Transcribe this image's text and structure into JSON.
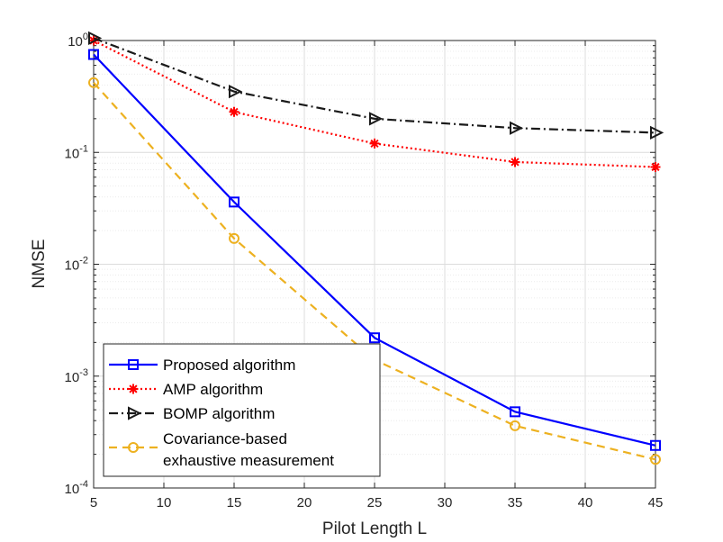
{
  "chart_data": {
    "type": "line",
    "title": "",
    "xlabel": "Pilot Length L",
    "ylabel": "NMSE",
    "yscale": "log",
    "xlim": [
      5,
      45
    ],
    "ylim_exp": [
      -4,
      0
    ],
    "x_ticks": [
      5,
      10,
      15,
      20,
      25,
      30,
      35,
      40,
      45
    ],
    "y_ticks": [
      {
        "base": "10",
        "exp": "0"
      },
      {
        "base": "10",
        "exp": "-1"
      },
      {
        "base": "10",
        "exp": "-2"
      },
      {
        "base": "10",
        "exp": "-3"
      },
      {
        "base": "10",
        "exp": "-4"
      }
    ],
    "grid": true,
    "legend_position": "bottom-left",
    "x": [
      5,
      15,
      25,
      35,
      45
    ],
    "series": [
      {
        "name": "Proposed algorithm",
        "legend_lines": [
          "Proposed algorithm"
        ],
        "color": "#0000ff",
        "dash": "",
        "marker": "square",
        "values": [
          0.75,
          0.036,
          0.0022,
          0.00048,
          0.00024
        ]
      },
      {
        "name": "AMP algorithm",
        "legend_lines": [
          "AMP algorithm"
        ],
        "color": "#ff0000",
        "dash": "2,3",
        "marker": "star",
        "values": [
          1.0,
          0.23,
          0.12,
          0.082,
          0.074
        ]
      },
      {
        "name": "BOMP algorithm",
        "legend_lines": [
          "BOMP algorithm"
        ],
        "color": "#1a1a1a",
        "dash": "10,4,2,4",
        "marker": "triangle-right",
        "values": [
          1.05,
          0.35,
          0.2,
          0.165,
          0.15
        ]
      },
      {
        "name": "Covariance-based exhaustive measurement",
        "legend_lines": [
          "Covariance-based",
          "exhaustive measurement"
        ],
        "color": "#edb120",
        "dash": "9,6",
        "marker": "circle",
        "values": [
          0.42,
          0.017,
          0.0014,
          0.00036,
          0.00018
        ]
      }
    ]
  }
}
